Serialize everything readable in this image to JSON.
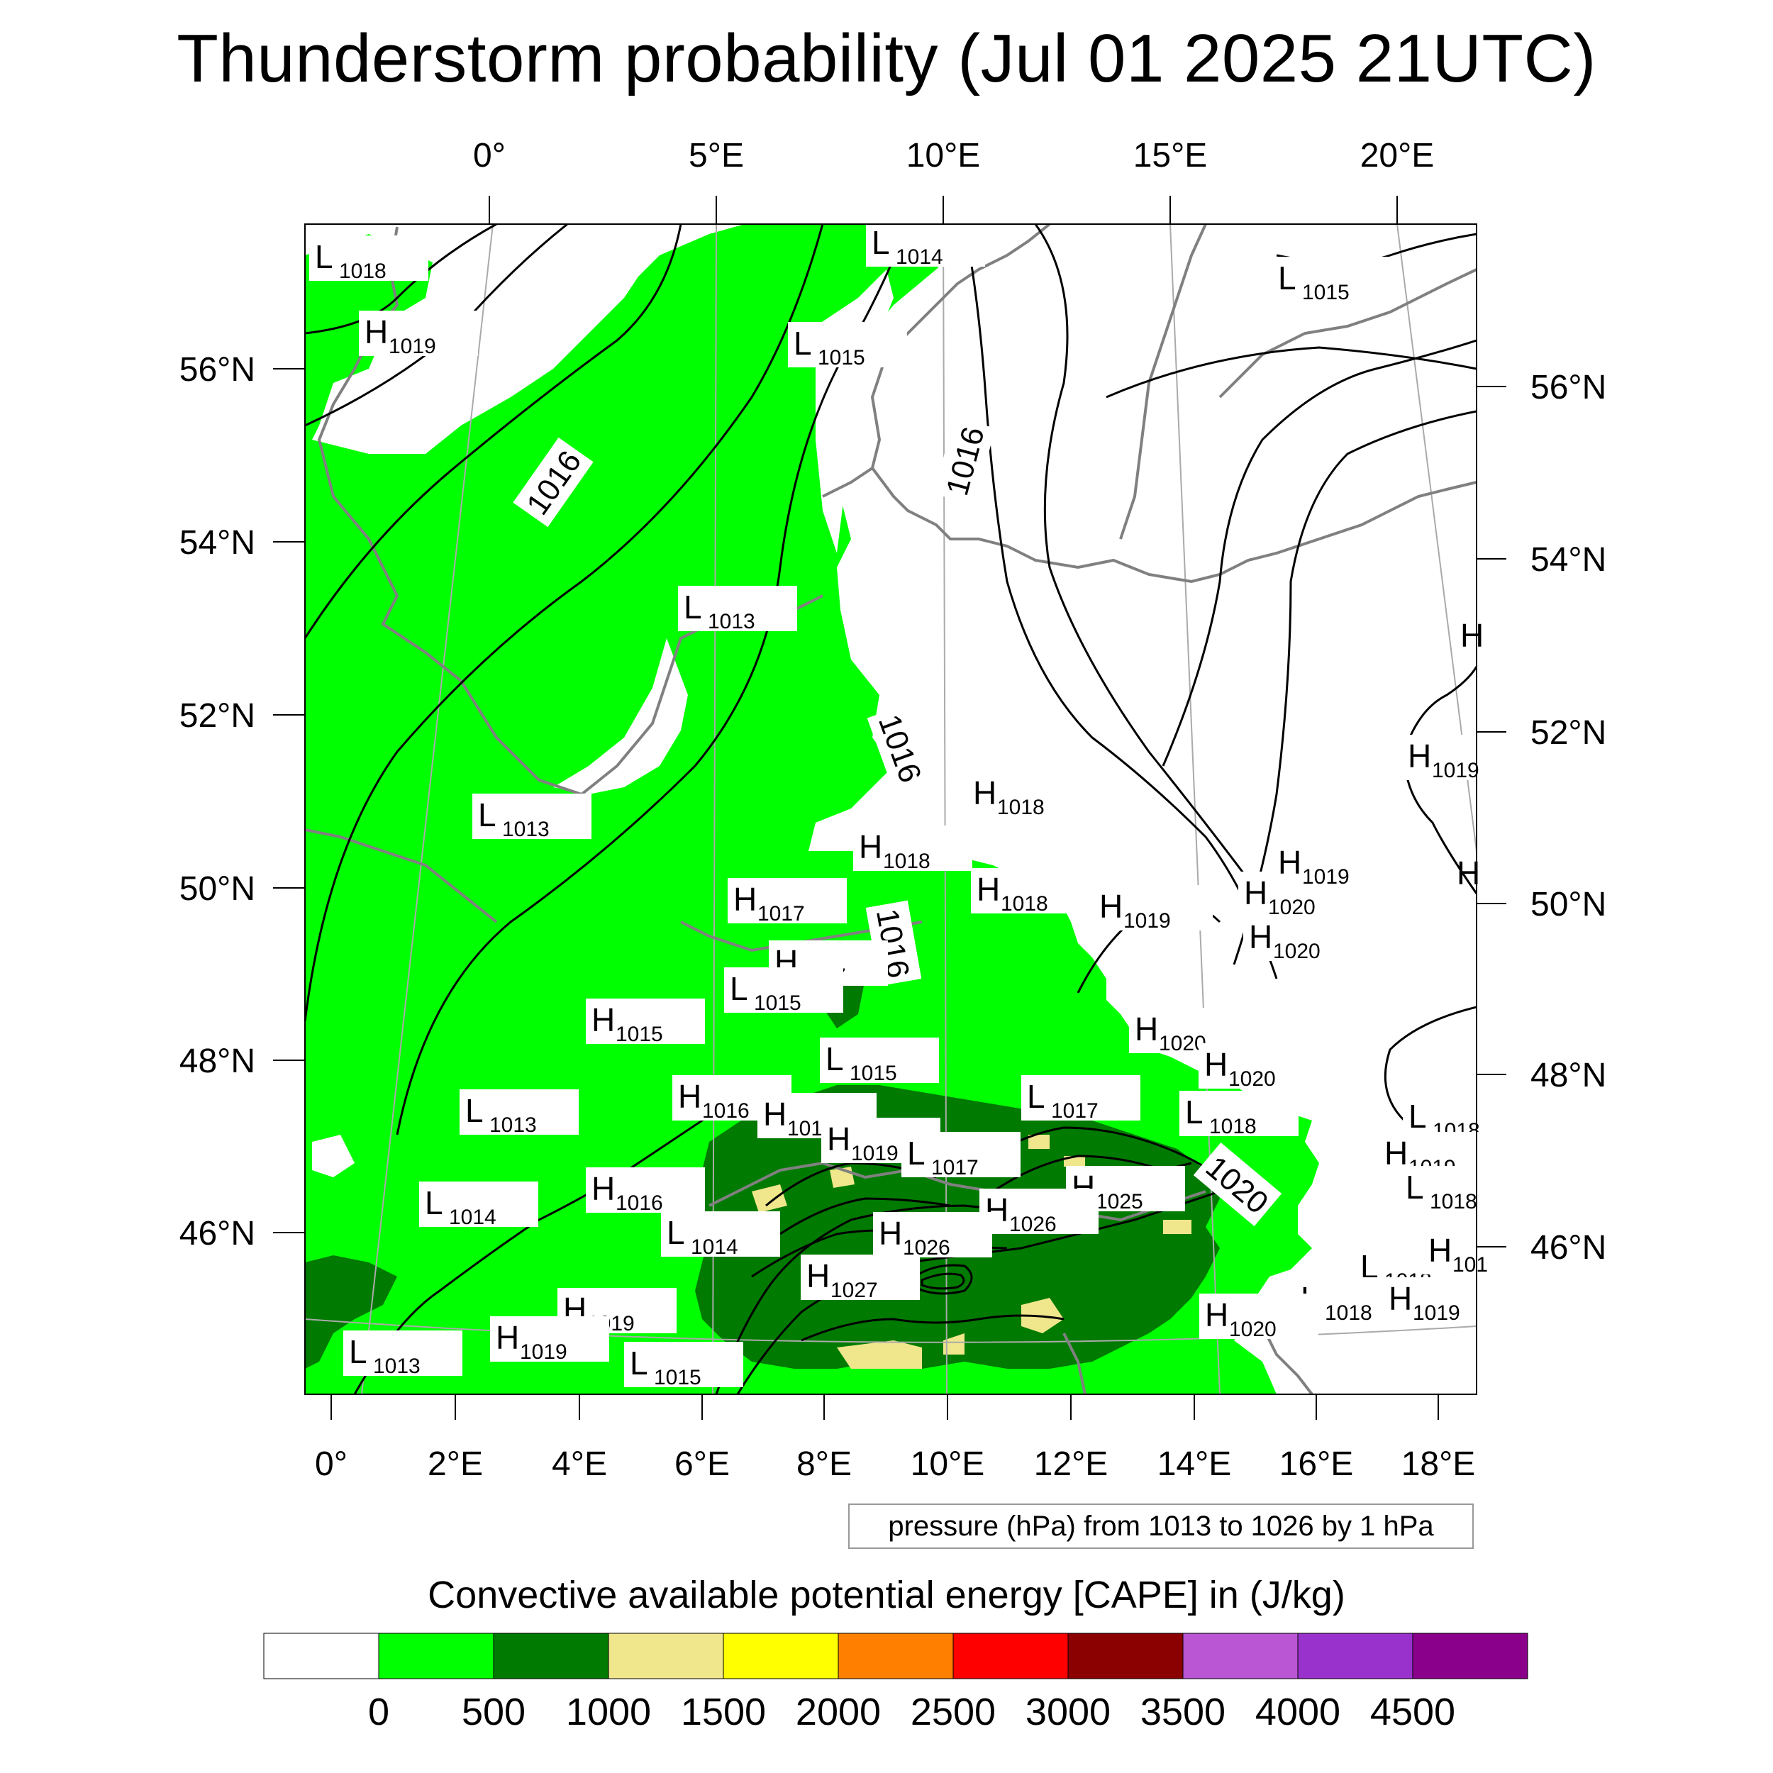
{
  "title": "Thunderstorm probability (Jul 01 2025 21UTC)",
  "top_axis_labels": [
    "0°",
    "5°E",
    "10°E",
    "15°E",
    "20°E"
  ],
  "bottom_axis_labels": [
    "0°",
    "2°E",
    "4°E",
    "6°E",
    "8°E",
    "10°E",
    "12°E",
    "14°E",
    "16°E",
    "18°E"
  ],
  "left_axis_labels": [
    "56°N",
    "54°N",
    "52°N",
    "50°N",
    "48°N",
    "46°N"
  ],
  "right_axis_labels": [
    "56°N",
    "54°N",
    "52°N",
    "50°N",
    "48°N",
    "46°N"
  ],
  "pressure_info": "pressure (hPa) from 1013 to 1026 by 1 hPa",
  "colorbar": {
    "title": "Convective available potential energy [CAPE] in (J/kg)",
    "colors": [
      "#ffffff",
      "#00ff00",
      "#007a00",
      "#f0e68c",
      "#ffff00",
      "#ff8000",
      "#ff0000",
      "#8b0000",
      "#ba55d3",
      "#9932cc",
      "#8b008b"
    ],
    "tick_labels": [
      "0",
      "500",
      "1000",
      "1500",
      "2000",
      "2500",
      "3000",
      "3500",
      "4000",
      "4500"
    ]
  },
  "isobar_labels": [
    "1016",
    "1016",
    "1016",
    "1016",
    "1020"
  ],
  "pressure_centers": [
    {
      "type": "L",
      "value": "1018"
    },
    {
      "type": "L",
      "value": "1014"
    },
    {
      "type": "H",
      "value": "1019"
    },
    {
      "type": "L",
      "value": "1015"
    },
    {
      "type": "L",
      "value": "1015"
    },
    {
      "type": "L",
      "value": "1013"
    },
    {
      "type": "L",
      "value": "1013"
    },
    {
      "type": "H",
      "value": "1018"
    },
    {
      "type": "H",
      "value": "1018"
    },
    {
      "type": "H",
      "value": "1018"
    },
    {
      "type": "H",
      "value": "1019"
    },
    {
      "type": "H",
      "value": "1017"
    },
    {
      "type": "H",
      "value": "1017"
    },
    {
      "type": "L",
      "value": "1015"
    },
    {
      "type": "H",
      "value": "1015"
    },
    {
      "type": "L",
      "value": "1015"
    },
    {
      "type": "H",
      "value": "1020"
    },
    {
      "type": "H",
      "value": "1020"
    },
    {
      "type": "H",
      "value": "1020"
    },
    {
      "type": "H",
      "value": "1020"
    },
    {
      "type": "L",
      "value": "1013"
    },
    {
      "type": "H",
      "value": "1016"
    },
    {
      "type": "H",
      "value": "1018"
    },
    {
      "type": "H",
      "value": "1019"
    },
    {
      "type": "L",
      "value": "1017"
    },
    {
      "type": "L",
      "value": "1018"
    },
    {
      "type": "L",
      "value": "1018"
    },
    {
      "type": "H",
      "value": "1016"
    },
    {
      "type": "L",
      "value": "1017"
    },
    {
      "type": "H",
      "value": "1019"
    },
    {
      "type": "L",
      "value": "1018"
    },
    {
      "type": "L",
      "value": "1014"
    },
    {
      "type": "H",
      "value": "1025"
    },
    {
      "type": "L",
      "value": "1014"
    },
    {
      "type": "H",
      "value": "1026"
    },
    {
      "type": "H",
      "value": "1026"
    },
    {
      "type": "H",
      "value": "1027"
    },
    {
      "type": "L",
      "value": "1018"
    },
    {
      "type": "L",
      "value": "1018"
    },
    {
      "type": "H",
      "value": "1019"
    },
    {
      "type": "H",
      "value": "1019"
    },
    {
      "type": "H",
      "value": "1020"
    },
    {
      "type": "L",
      "value": "1013"
    },
    {
      "type": "H",
      "value": "1019"
    },
    {
      "type": "L",
      "value": "1015"
    },
    {
      "type": "H",
      "value": "1019"
    },
    {
      "type": "H",
      "value": "1019"
    },
    {
      "type": "H",
      "value": "101"
    },
    {
      "type": "H",
      "value": ""
    },
    {
      "type": "H",
      "value": ""
    }
  ]
}
